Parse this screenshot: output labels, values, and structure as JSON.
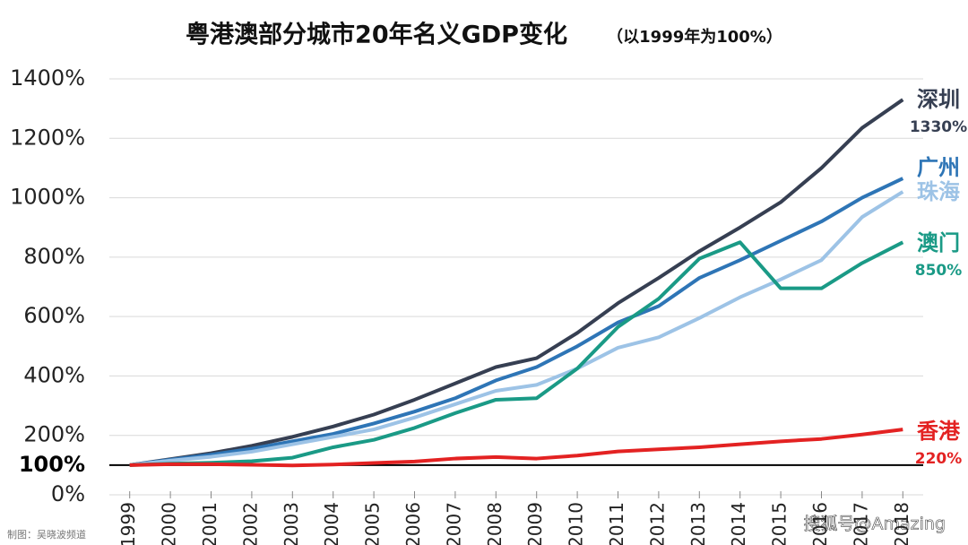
{
  "chart_data": {
    "type": "line",
    "title": "粤港澳部分城市20年名义GDP变化",
    "subtitle": "（以1999年为100%）",
    "x": [
      1999,
      2000,
      2001,
      2002,
      2003,
      2004,
      2005,
      2006,
      2007,
      2008,
      2009,
      2010,
      2011,
      2012,
      2013,
      2014,
      2015,
      2016,
      2017,
      2018
    ],
    "xlim": [
      1998.5,
      2018.5
    ],
    "xticks": [
      1999,
      2000,
      2001,
      2002,
      2003,
      2004,
      2005,
      2006,
      2007,
      2008,
      2009,
      2010,
      2011,
      2012,
      2013,
      2014,
      2015,
      2016,
      2017,
      2018
    ],
    "ylim": [
      0,
      1400
    ],
    "yticks": [
      {
        "value": 0,
        "label": "0%"
      },
      {
        "value": 200,
        "label": "200%"
      },
      {
        "value": 400,
        "label": "400%"
      },
      {
        "value": 600,
        "label": "600%"
      },
      {
        "value": 800,
        "label": "800%"
      },
      {
        "value": 1000,
        "label": "1000%"
      },
      {
        "value": 1200,
        "label": "1200%"
      },
      {
        "value": 1400,
        "label": "1400%"
      }
    ],
    "baseline": {
      "value": 100,
      "label": "100%"
    },
    "grid": true,
    "series": [
      {
        "name": "深圳",
        "color": "#363f52",
        "values": [
          100,
          120,
          140,
          165,
          195,
          230,
          270,
          320,
          375,
          430,
          460,
          545,
          645,
          730,
          820,
          900,
          985,
          1100,
          1235,
          1330
        ],
        "value_labels": [
          null,
          null,
          null,
          null,
          null,
          null,
          null,
          null,
          null,
          null,
          null,
          null,
          null,
          null,
          null,
          null,
          null,
          null,
          null,
          "1330%"
        ]
      },
      {
        "name": "广州",
        "color": "#2e75b6",
        "values": [
          100,
          118,
          135,
          155,
          180,
          205,
          240,
          280,
          325,
          385,
          430,
          500,
          580,
          635,
          730,
          790,
          855,
          920,
          1000,
          1065
        ]
      },
      {
        "name": "珠海",
        "color": "#9dc3e6",
        "values": [
          100,
          115,
          128,
          145,
          170,
          195,
          220,
          260,
          305,
          350,
          370,
          425,
          495,
          530,
          595,
          665,
          725,
          790,
          935,
          1020
        ]
      },
      {
        "name": "澳门",
        "color": "#1a9a86",
        "values": [
          100,
          105,
          108,
          113,
          125,
          160,
          185,
          225,
          275,
          320,
          325,
          425,
          565,
          660,
          795,
          850,
          695,
          695,
          780,
          850
        ],
        "value_labels": [
          null,
          null,
          null,
          null,
          null,
          null,
          null,
          null,
          null,
          null,
          null,
          null,
          null,
          null,
          null,
          null,
          null,
          null,
          null,
          "850%"
        ]
      },
      {
        "name": "香港",
        "color": "#e32222",
        "values": [
          100,
          103,
          103,
          101,
          99,
          102,
          107,
          112,
          122,
          127,
          122,
          132,
          146,
          153,
          160,
          170,
          180,
          188,
          203,
          220
        ],
        "value_labels": [
          null,
          null,
          null,
          null,
          null,
          null,
          null,
          null,
          null,
          null,
          null,
          null,
          null,
          null,
          null,
          null,
          null,
          null,
          null,
          "220%"
        ]
      }
    ]
  },
  "footer": "制图：吴晓波频道",
  "watermark": "搜狐号@Amazing"
}
